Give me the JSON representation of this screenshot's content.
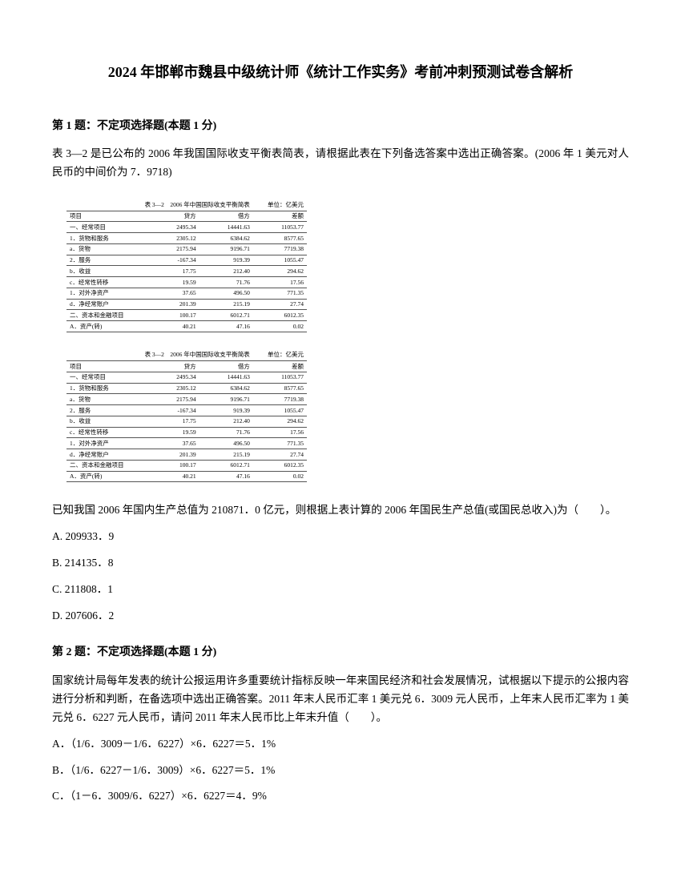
{
  "pageTitle": "2024 年邯郸市魏县中级统计师《统计工作实务》考前冲刺预测试卷含解析",
  "q1": {
    "header": "第 1 题：不定项选择题(本题 1 分)",
    "text1": "表 3—2 是已公布的 2006 年我国国际收支平衡表简表，请根据此表在下列备选答案中选出正确答案。(2006 年 1 美元对人民币的中间价为 7．9718)",
    "text2": "已知我国 2006 年国内生产总值为 210871．0 亿元，则根据上表计算的 2006 年国民生产总值(或国民总收入)为（　　）。",
    "optA": "A. 209933．9",
    "optB": "B. 214135．8",
    "optC": "C. 211808．1",
    "optD": "D. 207606．2"
  },
  "table": {
    "titleLeft": "表 3—2　2006 年中国国际收支平衡简表",
    "titleRight": "单位：亿美元",
    "header": {
      "c1": "项目",
      "c2": "贷方",
      "c3": "借方",
      "c4": "差额"
    },
    "rows": [
      {
        "c1": "一、经常项目",
        "c2": "2495.34",
        "c3": "14441.63",
        "c4": "11053.77"
      },
      {
        "c1": "1．货物和服务",
        "c2": "2305.12",
        "c3": "6384.62",
        "c4": "8577.65"
      },
      {
        "c1": "a．货物",
        "c2": "2175.94",
        "c3": "9196.71",
        "c4": "7719.38"
      },
      {
        "c1": "2．服务",
        "c2": "-167.34",
        "c3": "919.39",
        "c4": "1055.47"
      },
      {
        "c1": "b．收益",
        "c2": "17.75",
        "c3": "212.40",
        "c4": "294.62"
      },
      {
        "c1": "c．经常性转移",
        "c2": "19.59",
        "c3": "71.76",
        "c4": "17.56"
      },
      {
        "c1": "1．对外净资产",
        "c2": "37.65",
        "c3": "496.50",
        "c4": "771.35"
      },
      {
        "c1": "d．净经常账户",
        "c2": "201.39",
        "c3": "215.19",
        "c4": "27.74"
      },
      {
        "c1": "二、资本和金融项目",
        "c2": "100.17",
        "c3": "6012.71",
        "c4": "6012.35"
      },
      {
        "c1": "A．资产(转)",
        "c2": "40.21",
        "c3": "47.16",
        "c4": "0.02"
      }
    ]
  },
  "q2": {
    "header": "第 2 题：不定项选择题(本题 1 分)",
    "text": "国家统计局每年发表的统计公报运用许多重要统计指标反映一年来国民经济和社会发展情况，试根据以下提示的公报内容进行分析和判断，在备选项中选出正确答案。2011 年末人民币汇率 1 美元兑 6．3009 元人民币，上年末人民币汇率为 1 美元兑 6．6227 元人民币，请问 2011 年末人民币比上年末升值（　　）。",
    "optA": "A．（1/6．3009－1/6．6227）×6．6227＝5．1%",
    "optB": "B．（1/6．6227－1/6．3009）×6．6227＝5．1%",
    "optC": "C．（1－6．3009/6．6227）×6．6227＝4．9%"
  },
  "style": {
    "text_color": "#000000",
    "bg_color": "#ffffff",
    "border_color": "#555555",
    "title_fontsize": 18,
    "body_fontsize": 13.5,
    "table_fontsize": 7.5
  }
}
